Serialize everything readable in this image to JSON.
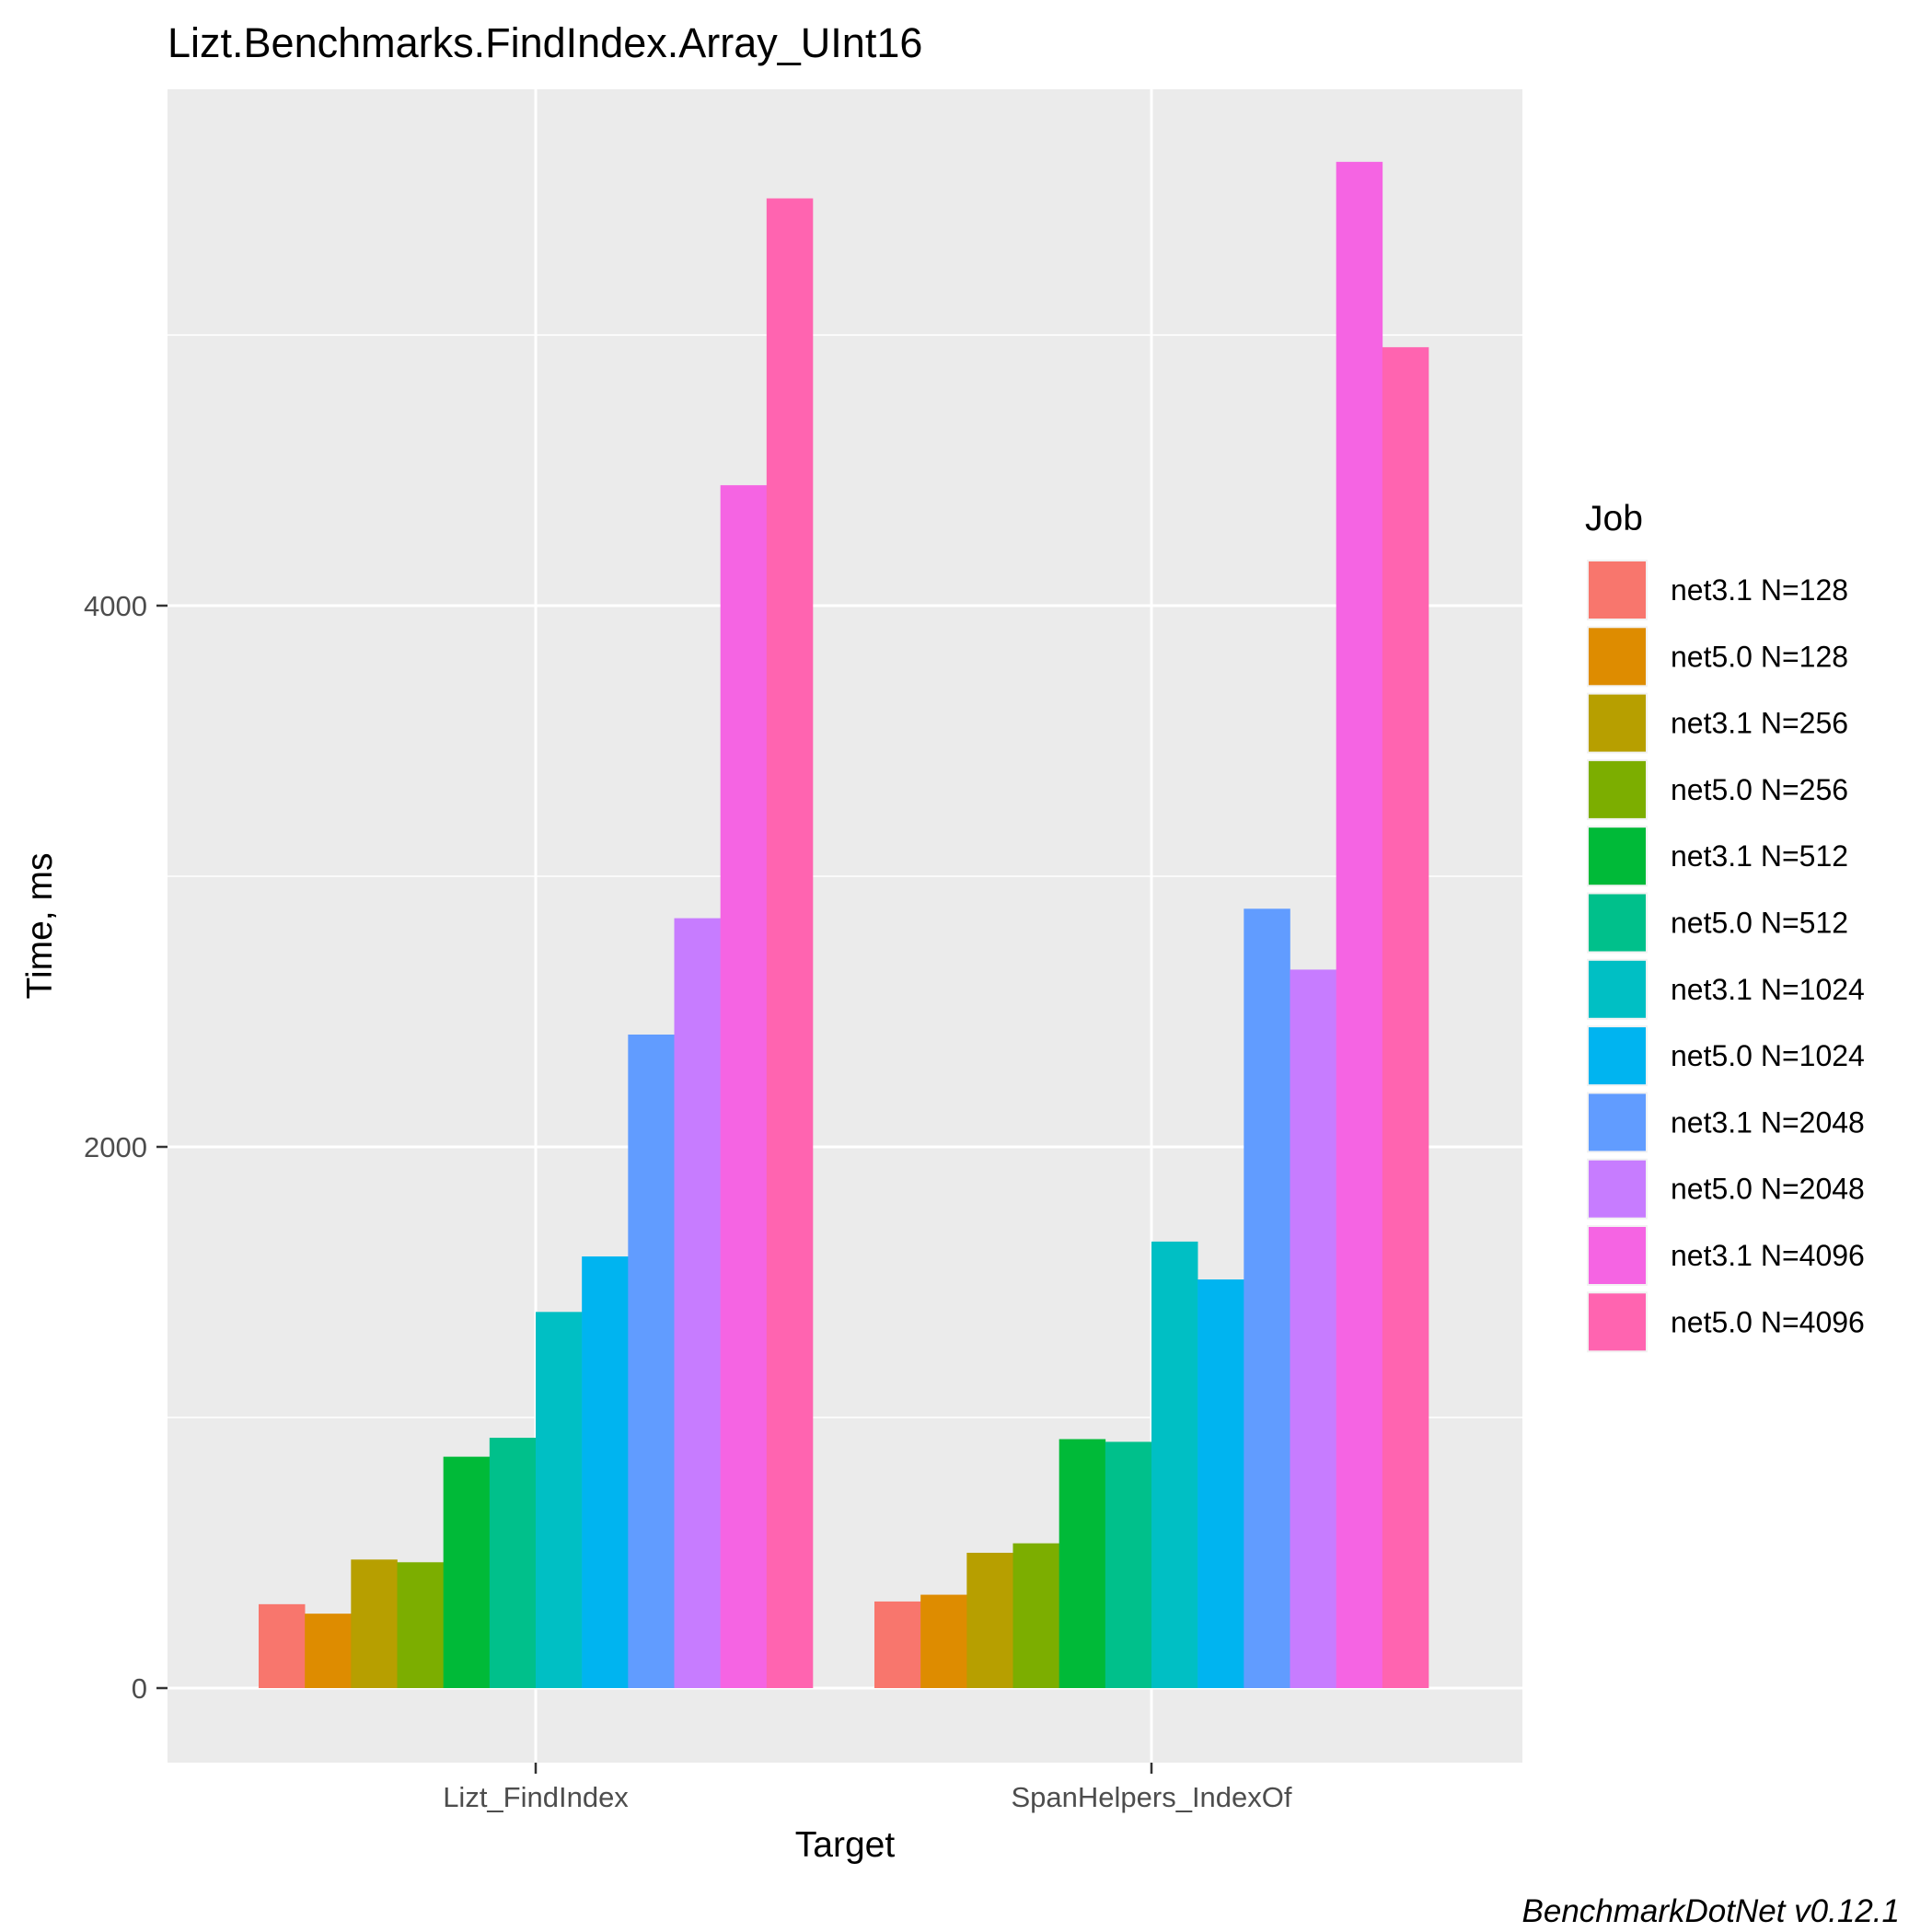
{
  "chart_data": {
    "type": "bar",
    "title": "Lizt.Benchmarks.FindIndex.Array_UInt16",
    "xlabel": "Target",
    "ylabel": "Time, ms",
    "caption": "BenchmarkDotNet v0.12.1",
    "legend_title": "Job",
    "legend_position": "right",
    "grid": true,
    "ylim": [
      -280,
      5450
    ],
    "yticks": [
      0,
      2000,
      4000
    ],
    "categories": [
      "Lizt_FindIndex",
      "SpanHelpers_IndexOf"
    ],
    "series": [
      {
        "name": "net3.1 N=128",
        "color": "#F8766D",
        "values": [
          310,
          320
        ]
      },
      {
        "name": "net5.0 N=128",
        "color": "#DE8C00",
        "values": [
          275,
          345
        ]
      },
      {
        "name": "net3.1 N=256",
        "color": "#B79F00",
        "values": [
          475,
          500
        ]
      },
      {
        "name": "net5.0 N=256",
        "color": "#7CAE00",
        "values": [
          465,
          535
        ]
      },
      {
        "name": "net3.1 N=512",
        "color": "#00BA38",
        "values": [
          855,
          920
        ]
      },
      {
        "name": "net5.0 N=512",
        "color": "#00C08B",
        "values": [
          925,
          910
        ]
      },
      {
        "name": "net3.1 N=1024",
        "color": "#00BFC4",
        "values": [
          1390,
          1650
        ]
      },
      {
        "name": "net5.0 N=1024",
        "color": "#00B4F0",
        "values": [
          1595,
          1510
        ]
      },
      {
        "name": "net3.1 N=2048",
        "color": "#619CFF",
        "values": [
          2415,
          2880
        ]
      },
      {
        "name": "net5.0 N=2048",
        "color": "#C77CFF",
        "values": [
          2845,
          2655
        ]
      },
      {
        "name": "net3.1 N=4096",
        "color": "#F564E3",
        "values": [
          4445,
          5640
        ]
      },
      {
        "name": "net5.0 N=4096",
        "color": "#FF64B0",
        "values": [
          5505,
          4955
        ]
      }
    ]
  }
}
